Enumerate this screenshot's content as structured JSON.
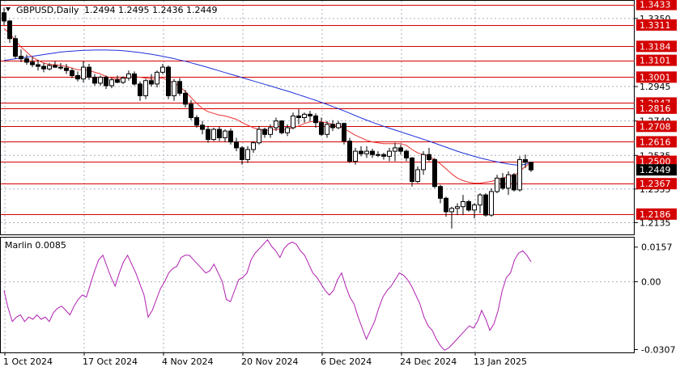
{
  "header": {
    "symbol": "GBPUSD,Daily",
    "ohlc": "1.2494 1.2495 1.2436 1.2449"
  },
  "oscillator": {
    "label": "Marlin 0.0085",
    "ticks": [
      "0.0157",
      "0.00",
      "-0.0307"
    ]
  },
  "colors": {
    "bull": "#ffffff",
    "bear": "#000000",
    "ma_fast": "#e8302f",
    "ma_slow": "#1f2fd9",
    "level": "#d40000",
    "oscillator": "#b020b0",
    "grid": "#aab2be",
    "bid_marker": "#000000"
  },
  "chart_data": [
    {
      "type": "candlestick",
      "title": "GBPUSD,Daily",
      "ylim": [
        1.2065,
        1.3455
      ],
      "x_labels": [
        "1 Oct 2024",
        "17 Oct 2024",
        "4 Nov 2024",
        "20 Nov 2024",
        "6 Dec 2024",
        "24 Dec 2024",
        "13 Jan 2025"
      ],
      "y_ticks": [
        "1.3350",
        "1.2945",
        "1.2740",
        "1.2535",
        "1.2335",
        "1.2135"
      ],
      "levels": [
        {
          "label": "1.3433",
          "value": 1.3433
        },
        {
          "label": "1.3311",
          "value": 1.3311
        },
        {
          "label": "1.3184",
          "value": 1.3184
        },
        {
          "label": "1.3101",
          "value": 1.3101
        },
        {
          "label": "1.3001",
          "value": 1.3001
        },
        {
          "label": "1.2847",
          "value": 1.2847
        },
        {
          "label": "1.2816",
          "value": 1.2816
        },
        {
          "label": "1.2708",
          "value": 1.2708
        },
        {
          "label": "1.2616",
          "value": 1.2616
        },
        {
          "label": "1.2500",
          "value": 1.25
        },
        {
          "label": "1.2367",
          "value": 1.2367
        },
        {
          "label": "1.2186",
          "value": 1.2186
        }
      ],
      "last_price": {
        "label": "1.2449",
        "value": 1.2449
      },
      "ohlc": [
        [
          1.3384,
          1.3415,
          1.331,
          1.3335
        ],
        [
          1.3335,
          1.334,
          1.3205,
          1.323
        ],
        [
          1.323,
          1.325,
          1.311,
          1.3125
        ],
        [
          1.3125,
          1.3165,
          1.309,
          1.311
        ],
        [
          1.311,
          1.3135,
          1.3075,
          1.309
        ],
        [
          1.309,
          1.312,
          1.306,
          1.3075
        ],
        [
          1.3075,
          1.3105,
          1.304,
          1.3065
        ],
        [
          1.3065,
          1.3085,
          1.303,
          1.305
        ],
        [
          1.305,
          1.3085,
          1.304,
          1.307
        ],
        [
          1.307,
          1.3095,
          1.3055,
          1.306
        ],
        [
          1.306,
          1.3085,
          1.3045,
          1.3055
        ],
        [
          1.3055,
          1.308,
          1.302,
          1.304
        ],
        [
          1.304,
          1.3055,
          1.2995,
          1.301
        ],
        [
          1.301,
          1.3035,
          1.2975,
          1.299
        ],
        [
          1.299,
          1.3095,
          1.297,
          1.306
        ],
        [
          1.306,
          1.308,
          1.2985,
          1.3
        ],
        [
          1.3,
          1.302,
          1.295,
          1.2965
        ],
        [
          1.2965,
          1.301,
          1.295,
          1.3
        ],
        [
          1.3,
          1.301,
          1.293,
          1.295
        ],
        [
          1.295,
          1.2995,
          1.2935,
          1.2985
        ],
        [
          1.2985,
          1.301,
          1.2965,
          1.297
        ],
        [
          1.297,
          1.3005,
          1.296,
          1.2995
        ],
        [
          1.2995,
          1.304,
          1.298,
          1.302
        ],
        [
          1.302,
          1.3035,
          1.295,
          1.296
        ],
        [
          1.296,
          1.2975,
          1.286,
          1.289
        ],
        [
          1.289,
          1.299,
          1.287,
          1.298
        ],
        [
          1.298,
          1.302,
          1.2945,
          1.296
        ],
        [
          1.296,
          1.304,
          1.294,
          1.303
        ],
        [
          1.303,
          1.308,
          1.302,
          1.306
        ],
        [
          1.306,
          1.307,
          1.287,
          1.289
        ],
        [
          1.289,
          1.299,
          1.286,
          1.2975
        ],
        [
          1.2975,
          1.2995,
          1.289,
          1.2905
        ],
        [
          1.2905,
          1.2925,
          1.282,
          1.284
        ],
        [
          1.284,
          1.2865,
          1.2745,
          1.276
        ],
        [
          1.276,
          1.2775,
          1.27,
          1.2715
        ],
        [
          1.2715,
          1.274,
          1.266,
          1.269
        ],
        [
          1.269,
          1.271,
          1.261,
          1.263
        ],
        [
          1.263,
          1.27,
          1.262,
          1.269
        ],
        [
          1.269,
          1.2705,
          1.262,
          1.264
        ],
        [
          1.264,
          1.269,
          1.2615,
          1.268
        ],
        [
          1.268,
          1.2695,
          1.26,
          1.2615
        ],
        [
          1.2615,
          1.264,
          1.256,
          1.258
        ],
        [
          1.258,
          1.259,
          1.248,
          1.251
        ],
        [
          1.251,
          1.259,
          1.249,
          1.257
        ],
        [
          1.257,
          1.262,
          1.255,
          1.261
        ],
        [
          1.261,
          1.271,
          1.26,
          1.269
        ],
        [
          1.269,
          1.27,
          1.264,
          1.266
        ],
        [
          1.266,
          1.272,
          1.264,
          1.27
        ],
        [
          1.27,
          1.276,
          1.268,
          1.274
        ],
        [
          1.274,
          1.2745,
          1.266,
          1.267
        ],
        [
          1.267,
          1.272,
          1.265,
          1.27
        ],
        [
          1.27,
          1.279,
          1.269,
          1.277
        ],
        [
          1.277,
          1.281,
          1.272,
          1.276
        ],
        [
          1.276,
          1.279,
          1.273,
          1.278
        ],
        [
          1.278,
          1.28,
          1.274,
          1.277
        ],
        [
          1.277,
          1.2785,
          1.27,
          1.273
        ],
        [
          1.273,
          1.276,
          1.265,
          1.266
        ],
        [
          1.266,
          1.274,
          1.264,
          1.272
        ],
        [
          1.272,
          1.2745,
          1.268,
          1.27
        ],
        [
          1.27,
          1.274,
          1.269,
          1.2725
        ],
        [
          1.2725,
          1.273,
          1.26,
          1.262
        ],
        [
          1.262,
          1.264,
          1.249,
          1.25
        ],
        [
          1.25,
          1.258,
          1.248,
          1.256
        ],
        [
          1.256,
          1.259,
          1.253,
          1.2545
        ],
        [
          1.2545,
          1.259,
          1.252,
          1.256
        ],
        [
          1.256,
          1.2575,
          1.252,
          1.254
        ],
        [
          1.254,
          1.256,
          1.2525,
          1.254
        ],
        [
          1.254,
          1.255,
          1.251,
          1.253
        ],
        [
          1.253,
          1.258,
          1.25,
          1.256
        ],
        [
          1.256,
          1.261,
          1.25,
          1.258
        ],
        [
          1.258,
          1.26,
          1.254,
          1.256
        ],
        [
          1.256,
          1.257,
          1.25,
          1.252
        ],
        [
          1.252,
          1.2525,
          1.235,
          1.238
        ],
        [
          1.238,
          1.247,
          1.237,
          1.245
        ],
        [
          1.245,
          1.256,
          1.242,
          1.254
        ],
        [
          1.254,
          1.258,
          1.25,
          1.251
        ],
        [
          1.251,
          1.252,
          1.234,
          1.235
        ],
        [
          1.235,
          1.236,
          1.225,
          1.228
        ],
        [
          1.228,
          1.229,
          1.217,
          1.22
        ],
        [
          1.22,
          1.223,
          1.21,
          1.222
        ],
        [
          1.222,
          1.225,
          1.218,
          1.223
        ],
        [
          1.223,
          1.23,
          1.218,
          1.226
        ],
        [
          1.226,
          1.227,
          1.22,
          1.221
        ],
        [
          1.221,
          1.225,
          1.216,
          1.224
        ],
        [
          1.224,
          1.231,
          1.219,
          1.23
        ],
        [
          1.23,
          1.231,
          1.217,
          1.218
        ],
        [
          1.218,
          1.234,
          1.217,
          1.232
        ],
        [
          1.232,
          1.242,
          1.231,
          1.24
        ],
        [
          1.24,
          1.243,
          1.233,
          1.234
        ],
        [
          1.234,
          1.244,
          1.23,
          1.242
        ],
        [
          1.242,
          1.243,
          1.232,
          1.233
        ],
        [
          1.233,
          1.253,
          1.232,
          1.251
        ],
        [
          1.251,
          1.254,
          1.246,
          1.2494
        ],
        [
          1.2494,
          1.2495,
          1.2436,
          1.2449
        ]
      ],
      "ma_fast": [
        1.329,
        1.326,
        1.322,
        1.318,
        1.315,
        1.312,
        1.31,
        1.3085,
        1.3075,
        1.3075,
        1.307,
        1.3065,
        1.3055,
        1.3045,
        1.3045,
        1.304,
        1.303,
        1.302,
        1.3005,
        1.2995,
        1.299,
        1.299,
        1.3,
        1.3005,
        1.3,
        1.2995,
        1.299,
        1.299,
        1.2995,
        1.298,
        1.2965,
        1.2945,
        1.2915,
        1.288,
        1.2845,
        1.2815,
        1.2795,
        1.2785,
        1.2775,
        1.277,
        1.276,
        1.275,
        1.273,
        1.2715,
        1.27,
        1.269,
        1.2685,
        1.2685,
        1.269,
        1.269,
        1.269,
        1.27,
        1.271,
        1.2725,
        1.2735,
        1.274,
        1.2735,
        1.273,
        1.272,
        1.271,
        1.2695,
        1.2675,
        1.2655,
        1.264,
        1.2625,
        1.2615,
        1.261,
        1.2605,
        1.2605,
        1.2605,
        1.2605,
        1.2595,
        1.257,
        1.255,
        1.254,
        1.253,
        1.251,
        1.2485,
        1.2455,
        1.2425,
        1.24,
        1.2385,
        1.2375,
        1.237,
        1.237,
        1.2375,
        1.238,
        1.239,
        1.24,
        1.241,
        1.2415,
        1.244,
        1.247,
        1.249
      ],
      "ma_slow": [
        1.31,
        1.3105,
        1.311,
        1.3115,
        1.312,
        1.3125,
        1.313,
        1.3135,
        1.314,
        1.3145,
        1.315,
        1.3153,
        1.3156,
        1.3158,
        1.316,
        1.3161,
        1.3162,
        1.3162,
        1.3162,
        1.3161,
        1.316,
        1.3158,
        1.3155,
        1.3151,
        1.3147,
        1.3142,
        1.3137,
        1.3131,
        1.3125,
        1.3118,
        1.3111,
        1.3103,
        1.3095,
        1.3086,
        1.3077,
        1.3068,
        1.3058,
        1.3048,
        1.3038,
        1.3028,
        1.3018,
        1.3008,
        1.2998,
        1.2988,
        1.2978,
        1.2968,
        1.2958,
        1.2948,
        1.2938,
        1.2928,
        1.2918,
        1.2907,
        1.2896,
        1.2885,
        1.2874,
        1.2863,
        1.2851,
        1.2839,
        1.2826,
        1.2813,
        1.28,
        1.2786,
        1.2772,
        1.2758,
        1.2745,
        1.2732,
        1.272,
        1.2708,
        1.2697,
        1.2686,
        1.2675,
        1.2664,
        1.2653,
        1.2642,
        1.2631,
        1.262,
        1.2608,
        1.2596,
        1.2584,
        1.2572,
        1.256,
        1.2549,
        1.2539,
        1.2529,
        1.252,
        1.2512,
        1.2504,
        1.2497,
        1.249,
        1.2484,
        1.2479,
        1.2476,
        1.2482,
        1.2494
      ]
    },
    {
      "type": "line",
      "title": "Marlin 0.0085",
      "ylim": [
        -0.032,
        0.02
      ],
      "zero_line": 0.0,
      "series": [
        {
          "values": [
            -0.004,
            -0.012,
            -0.018,
            -0.016,
            -0.015,
            -0.018,
            -0.016,
            -0.017,
            -0.015,
            -0.017,
            -0.016,
            -0.018,
            -0.014,
            -0.012,
            -0.011,
            -0.013,
            -0.015,
            -0.011,
            -0.008,
            -0.006,
            -0.007,
            -0.001,
            0.005,
            0.01,
            0.012,
            0.007,
            0.002,
            -0.002,
            0.004,
            0.009,
            0.012,
            0.008,
            0.004,
            -0.001,
            -0.006,
            -0.016,
            -0.013,
            -0.008,
            -0.003,
            0.0,
            0.004,
            0.006,
            0.007,
            0.011,
            0.012,
            0.012,
            0.01,
            0.008,
            0.006,
            0.004,
            0.005,
            0.008,
            0.004,
            0.0,
            -0.008,
            -0.009,
            -0.004,
            0.001,
            0.002,
            0.004,
            0.01,
            0.013,
            0.015,
            0.017,
            0.019,
            0.016,
            0.014,
            0.011,
            0.015,
            0.017,
            0.018,
            0.017,
            0.014,
            0.012,
            0.008,
            0.004,
            0.002,
            -0.001,
            -0.004,
            -0.006,
            -0.004,
            0.001,
            0.004,
            -0.002,
            -0.007,
            -0.01,
            -0.016,
            -0.021,
            -0.026,
            -0.022,
            -0.018,
            -0.012,
            -0.007,
            -0.004,
            -0.002,
            0.001,
            0.004,
            0.003,
            0.001,
            -0.002,
            -0.006,
            -0.01,
            -0.016,
            -0.02,
            -0.022,
            -0.026,
            -0.029,
            -0.031,
            -0.03,
            -0.028,
            -0.026,
            -0.024,
            -0.022,
            -0.02,
            -0.021,
            -0.018,
            -0.013,
            -0.017,
            -0.022,
            -0.019,
            -0.013,
            -0.004,
            0.002,
            0.004,
            0.01,
            0.013,
            0.014,
            0.012,
            0.009
          ]
        }
      ]
    }
  ]
}
